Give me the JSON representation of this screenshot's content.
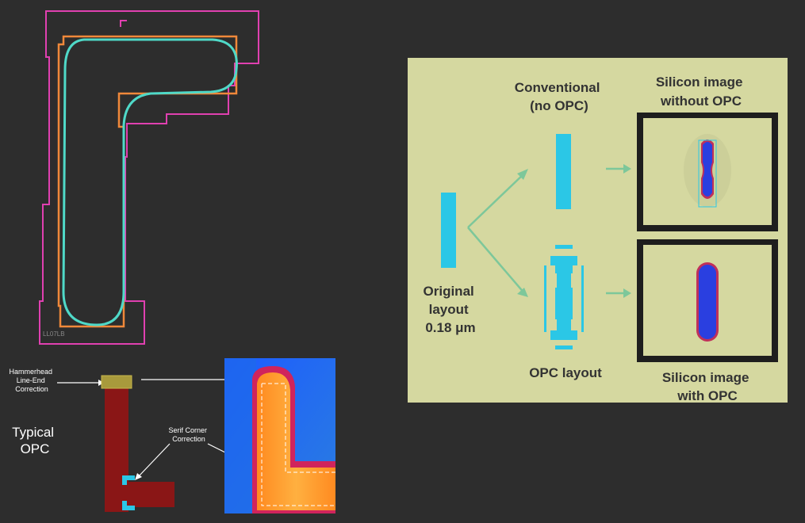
{
  "colors": {
    "background": "#2d2d2d",
    "outer_outline": "#e040b0",
    "opc_outline": "#f0883a",
    "silicon_contour": "#4fd9c8",
    "feature_cyan": "#2bc7e6",
    "panel_bg": "#d5d8a0",
    "arrow_green": "#7dc79a",
    "poly_red": "#8a1616"
  },
  "left_top": {
    "caption": "LL07LB"
  },
  "left_bottom": {
    "typical_label_line1": "Typical",
    "typical_label_line2": "OPC",
    "hammerhead_line1": "Hammerhead",
    "hammerhead_line2": "Line-End",
    "hammerhead_line3": "Correction",
    "serif_line1": "Serif Corner",
    "serif_line2": "Correction"
  },
  "right_panel": {
    "conventional_line1": "Conventional",
    "conventional_line2": "(no OPC)",
    "silicon_without_line1": "Silicon image",
    "silicon_without_line2": "without OPC",
    "original_line1": "Original",
    "original_line2": "layout",
    "original_line3": "0.18 μm",
    "opc_layout": "OPC layout",
    "silicon_with_line1": "Silicon image",
    "silicon_with_line2": "with OPC"
  }
}
